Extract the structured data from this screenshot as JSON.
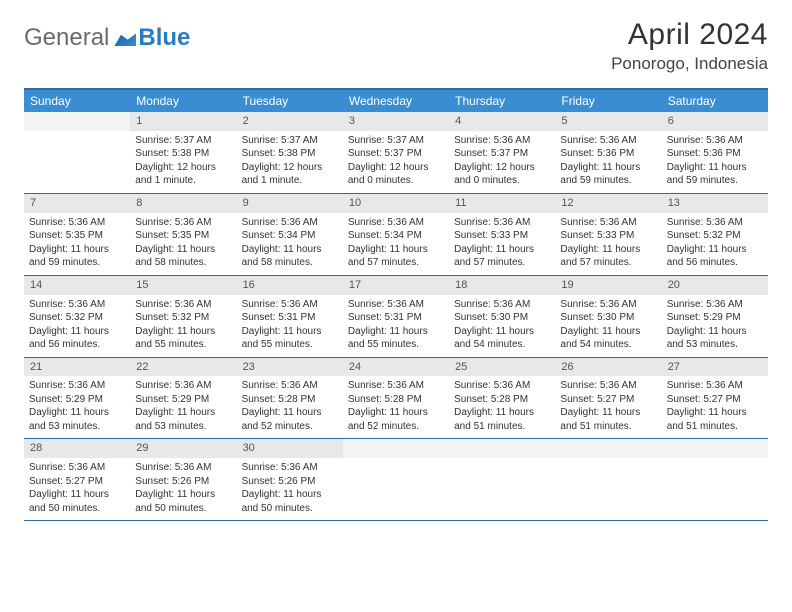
{
  "logo": {
    "text1": "General",
    "text2": "Blue"
  },
  "title": "April 2024",
  "location": "Ponorogo, Indonesia",
  "header_bg": "#3a8dd0",
  "rule_color": "#2b6ca3",
  "daynum_bg": "#e8e8e8",
  "weekdays": [
    "Sunday",
    "Monday",
    "Tuesday",
    "Wednesday",
    "Thursday",
    "Friday",
    "Saturday"
  ],
  "first_weekday_offset": 1,
  "days": [
    {
      "n": 1,
      "sunrise": "5:37 AM",
      "sunset": "5:38 PM",
      "daylight": "12 hours and 1 minute."
    },
    {
      "n": 2,
      "sunrise": "5:37 AM",
      "sunset": "5:38 PM",
      "daylight": "12 hours and 1 minute."
    },
    {
      "n": 3,
      "sunrise": "5:37 AM",
      "sunset": "5:37 PM",
      "daylight": "12 hours and 0 minutes."
    },
    {
      "n": 4,
      "sunrise": "5:36 AM",
      "sunset": "5:37 PM",
      "daylight": "12 hours and 0 minutes."
    },
    {
      "n": 5,
      "sunrise": "5:36 AM",
      "sunset": "5:36 PM",
      "daylight": "11 hours and 59 minutes."
    },
    {
      "n": 6,
      "sunrise": "5:36 AM",
      "sunset": "5:36 PM",
      "daylight": "11 hours and 59 minutes."
    },
    {
      "n": 7,
      "sunrise": "5:36 AM",
      "sunset": "5:35 PM",
      "daylight": "11 hours and 59 minutes."
    },
    {
      "n": 8,
      "sunrise": "5:36 AM",
      "sunset": "5:35 PM",
      "daylight": "11 hours and 58 minutes."
    },
    {
      "n": 9,
      "sunrise": "5:36 AM",
      "sunset": "5:34 PM",
      "daylight": "11 hours and 58 minutes."
    },
    {
      "n": 10,
      "sunrise": "5:36 AM",
      "sunset": "5:34 PM",
      "daylight": "11 hours and 57 minutes."
    },
    {
      "n": 11,
      "sunrise": "5:36 AM",
      "sunset": "5:33 PM",
      "daylight": "11 hours and 57 minutes."
    },
    {
      "n": 12,
      "sunrise": "5:36 AM",
      "sunset": "5:33 PM",
      "daylight": "11 hours and 57 minutes."
    },
    {
      "n": 13,
      "sunrise": "5:36 AM",
      "sunset": "5:32 PM",
      "daylight": "11 hours and 56 minutes."
    },
    {
      "n": 14,
      "sunrise": "5:36 AM",
      "sunset": "5:32 PM",
      "daylight": "11 hours and 56 minutes."
    },
    {
      "n": 15,
      "sunrise": "5:36 AM",
      "sunset": "5:32 PM",
      "daylight": "11 hours and 55 minutes."
    },
    {
      "n": 16,
      "sunrise": "5:36 AM",
      "sunset": "5:31 PM",
      "daylight": "11 hours and 55 minutes."
    },
    {
      "n": 17,
      "sunrise": "5:36 AM",
      "sunset": "5:31 PM",
      "daylight": "11 hours and 55 minutes."
    },
    {
      "n": 18,
      "sunrise": "5:36 AM",
      "sunset": "5:30 PM",
      "daylight": "11 hours and 54 minutes."
    },
    {
      "n": 19,
      "sunrise": "5:36 AM",
      "sunset": "5:30 PM",
      "daylight": "11 hours and 54 minutes."
    },
    {
      "n": 20,
      "sunrise": "5:36 AM",
      "sunset": "5:29 PM",
      "daylight": "11 hours and 53 minutes."
    },
    {
      "n": 21,
      "sunrise": "5:36 AM",
      "sunset": "5:29 PM",
      "daylight": "11 hours and 53 minutes."
    },
    {
      "n": 22,
      "sunrise": "5:36 AM",
      "sunset": "5:29 PM",
      "daylight": "11 hours and 53 minutes."
    },
    {
      "n": 23,
      "sunrise": "5:36 AM",
      "sunset": "5:28 PM",
      "daylight": "11 hours and 52 minutes."
    },
    {
      "n": 24,
      "sunrise": "5:36 AM",
      "sunset": "5:28 PM",
      "daylight": "11 hours and 52 minutes."
    },
    {
      "n": 25,
      "sunrise": "5:36 AM",
      "sunset": "5:28 PM",
      "daylight": "11 hours and 51 minutes."
    },
    {
      "n": 26,
      "sunrise": "5:36 AM",
      "sunset": "5:27 PM",
      "daylight": "11 hours and 51 minutes."
    },
    {
      "n": 27,
      "sunrise": "5:36 AM",
      "sunset": "5:27 PM",
      "daylight": "11 hours and 51 minutes."
    },
    {
      "n": 28,
      "sunrise": "5:36 AM",
      "sunset": "5:27 PM",
      "daylight": "11 hours and 50 minutes."
    },
    {
      "n": 29,
      "sunrise": "5:36 AM",
      "sunset": "5:26 PM",
      "daylight": "11 hours and 50 minutes."
    },
    {
      "n": 30,
      "sunrise": "5:36 AM",
      "sunset": "5:26 PM",
      "daylight": "11 hours and 50 minutes."
    }
  ],
  "labels": {
    "sunrise": "Sunrise:",
    "sunset": "Sunset:",
    "daylight": "Daylight:"
  }
}
